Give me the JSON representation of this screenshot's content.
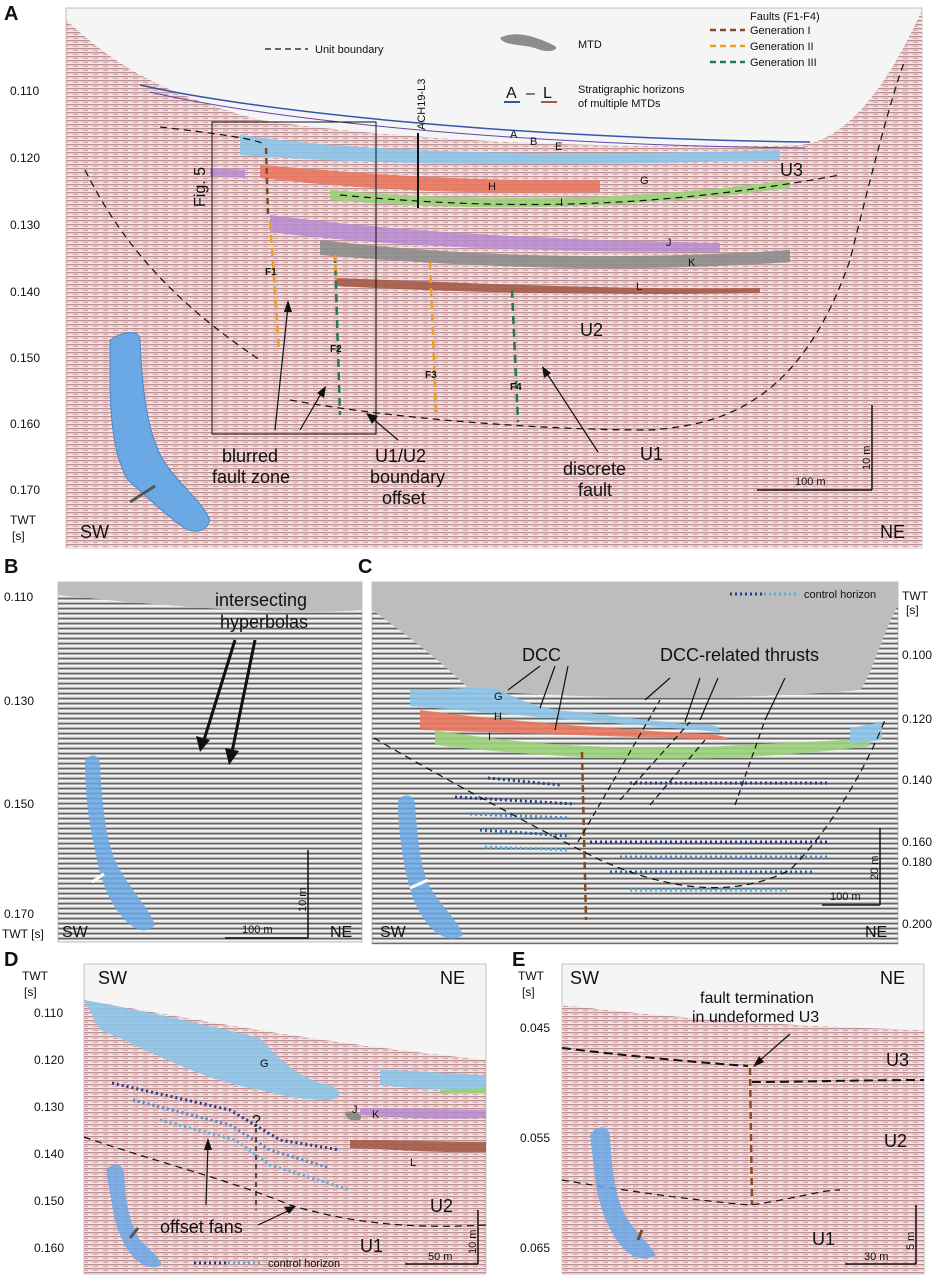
{
  "panels": {
    "A": {
      "label": "A",
      "yaxis_ticks": [
        "0.110",
        "0.120",
        "0.130",
        "0.140",
        "0.150",
        "0.160",
        "0.170"
      ],
      "yaxis_title": [
        "TWT",
        "[s]"
      ],
      "dir_left": "SW",
      "dir_right": "NE",
      "legend": {
        "unit_boundary": "Unit boundary",
        "mtd": "MTD",
        "horizons_from": "A",
        "horizons_dash": "–",
        "horizons_to": "L",
        "horizons_text_1": "Stratigraphic horizons",
        "horizons_text_2": "of multiple MTDs",
        "faults_title": "Faults (F1-F4)",
        "gen1": "Generation I",
        "gen2": "Generation II",
        "gen3": "Generation III"
      },
      "line_label": "ACH19-L3",
      "fig_label": "Fig. 5",
      "horizons": [
        "A",
        "B",
        "E",
        "G",
        "H",
        "I",
        "J",
        "K",
        "L"
      ],
      "faults": [
        "F1",
        "F2",
        "F3",
        "F4"
      ],
      "units": [
        "U3",
        "U2",
        "U1"
      ],
      "annotations": {
        "blurred_1": "blurred",
        "blurred_2": "fault zone",
        "offset_1": "U1/U2",
        "offset_2": "boundary",
        "offset_3": "offset",
        "discrete_1": "discrete",
        "discrete_2": "fault"
      },
      "scale_v": "10 m",
      "scale_h": "100 m",
      "colors": {
        "blue": "#8cc4e8",
        "red": "#e8775e",
        "green": "#9bd07a",
        "purple": "#b58ad0",
        "gray": "#8c8c8c",
        "brown": "#a45a46",
        "gen1": "#7a4a2a",
        "gen2": "#f0a020",
        "gen3": "#1e7a5a"
      }
    },
    "B": {
      "label": "B",
      "yaxis_ticks": [
        "0.110",
        "0.130",
        "0.150",
        "0.170"
      ],
      "yaxis_title": "TWT [s]",
      "annotation_1": "intersecting",
      "annotation_2": "hyperbolas",
      "dir_left": "SW",
      "dir_right": "NE",
      "scale_v": "10 m",
      "scale_h": "100 m"
    },
    "C": {
      "label": "C",
      "yaxis_ticks": [
        "0.100",
        "0.120",
        "0.140",
        "0.160",
        "0.180",
        "0.200"
      ],
      "yaxis_title": [
        "TWT",
        "[s]"
      ],
      "legend_control": "control horizon",
      "dcc": "DCC",
      "dcc_thrusts": "DCC-related thrusts",
      "horizons": [
        "G",
        "H",
        "I"
      ],
      "dir_left": "SW",
      "dir_right": "NE",
      "scale_v": "20 m",
      "scale_h": "100 m"
    },
    "D": {
      "label": "D",
      "yaxis_ticks": [
        "0.110",
        "0.120",
        "0.130",
        "0.140",
        "0.150",
        "0.160"
      ],
      "yaxis_title": [
        "TWT",
        "[s]"
      ],
      "dir_left": "SW",
      "dir_right": "NE",
      "horizons": [
        "G",
        "J",
        "K",
        "L"
      ],
      "question": "?",
      "units": [
        "U2",
        "U1"
      ],
      "annotation": "offset fans",
      "legend_control": "control horizon",
      "scale_v": "10 m",
      "scale_h": "50 m"
    },
    "E": {
      "label": "E",
      "yaxis_ticks": [
        "0.045",
        "0.055",
        "0.065"
      ],
      "yaxis_title": [
        "TWT",
        "[s]"
      ],
      "dir_left": "SW",
      "dir_right": "NE",
      "annotation_1": "fault termination",
      "annotation_2": "in undeformed U3",
      "units": [
        "U3",
        "U2",
        "U1"
      ],
      "scale_v": "5 m",
      "scale_h": "30 m"
    }
  }
}
